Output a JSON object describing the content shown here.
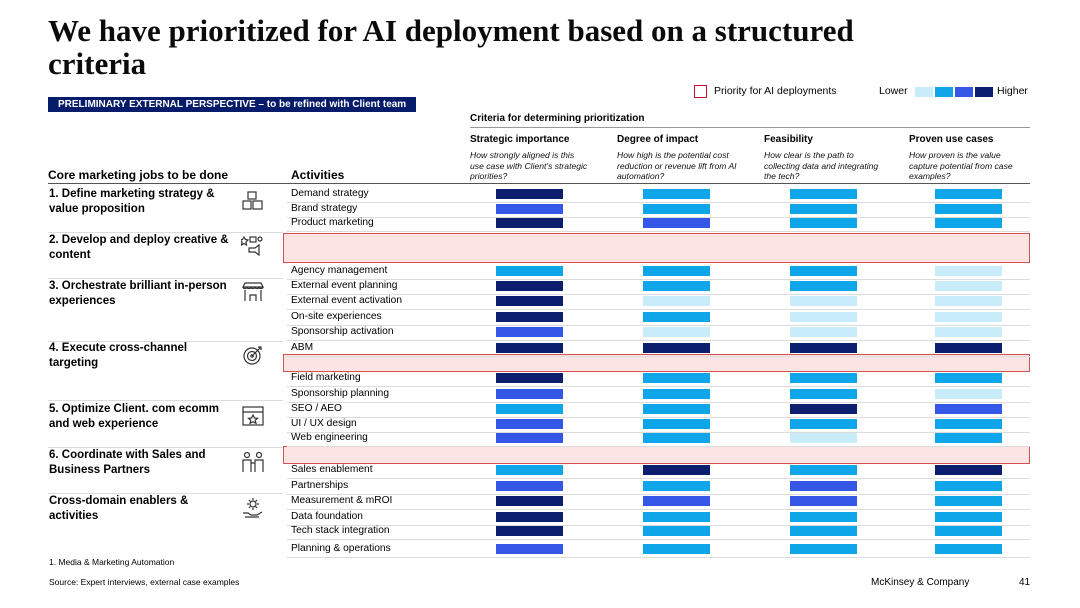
{
  "title": "We have prioritized for AI deployment based on a structured criteria",
  "banner": "PRELIMINARY EXTERNAL PERSPECTIVE – to be refined with Client team",
  "legend": {
    "priority_label": "Priority for AI deployments",
    "lower": "Lower",
    "higher": "Higher",
    "scale_colors": [
      "#c8ecfa",
      "#0ea5e9",
      "#3557e8",
      "#0b1f6e"
    ]
  },
  "criteria_group": "Criteria for determining prioritization",
  "criteria": [
    {
      "name": "Strategic importance",
      "desc": "How strongly aligned is this use case with Client's strategic priorities?"
    },
    {
      "name": "Degree of impact",
      "desc": "How high is the potential cost reduction or revenue lift from AI automation?"
    },
    {
      "name": "Feasibility",
      "desc": "How clear is the path to collecting data and integrating the tech?"
    },
    {
      "name": "Proven use cases",
      "desc": "How proven is the value capture potential from case examples?"
    }
  ],
  "col_jobs": "Core marketing jobs to be done",
  "col_activities": "Activities",
  "jobs": [
    {
      "label": "1. Define marketing strategy & value proposition",
      "icon": "blocks-icon"
    },
    {
      "label": "2. Develop and deploy creative & content",
      "icon": "creative-icon"
    },
    {
      "label": "3. Orchestrate brilliant in-person experiences",
      "icon": "storefront-icon"
    },
    {
      "label": "4. Execute cross-channel targeting",
      "icon": "target-icon"
    },
    {
      "label": "5. Optimize Client. com ecomm and web experience",
      "icon": "browser-icon"
    },
    {
      "label": "6. Coordinate with Sales and Business Partners",
      "icon": "people-icon"
    },
    {
      "label": "Cross-domain enablers & activities",
      "icon": "gear-hand-icon"
    }
  ],
  "activities": [
    {
      "name": "Demand strategy",
      "levels": [
        4,
        2,
        2,
        2
      ]
    },
    {
      "name": "Brand strategy",
      "levels": [
        3,
        2,
        2,
        2
      ]
    },
    {
      "name": "Product marketing",
      "levels": [
        4,
        3,
        2,
        2
      ]
    },
    {
      "name": "Agency management",
      "levels": [
        2,
        2,
        2,
        1
      ]
    },
    {
      "name": "External event planning",
      "levels": [
        4,
        2,
        2,
        1
      ]
    },
    {
      "name": "External event activation",
      "levels": [
        4,
        1,
        1,
        1
      ]
    },
    {
      "name": "On-site experiences",
      "levels": [
        4,
        2,
        1,
        1
      ]
    },
    {
      "name": "Sponsorship activation",
      "levels": [
        3,
        1,
        1,
        1
      ]
    },
    {
      "name": "ABM",
      "levels": [
        4,
        4,
        4,
        4
      ]
    },
    {
      "name": "Field marketing",
      "levels": [
        4,
        2,
        2,
        2
      ]
    },
    {
      "name": "Sponsorship planning",
      "levels": [
        3,
        2,
        2,
        1
      ]
    },
    {
      "name": "SEO / AEO",
      "levels": [
        2,
        2,
        4,
        3
      ]
    },
    {
      "name": "UI / UX design",
      "levels": [
        3,
        2,
        2,
        2
      ]
    },
    {
      "name": "Web engineering",
      "levels": [
        3,
        2,
        1,
        2
      ]
    },
    {
      "name": "Sales enablement",
      "levels": [
        2,
        4,
        2,
        4
      ]
    },
    {
      "name": "Partnerships",
      "levels": [
        3,
        2,
        3,
        2
      ]
    },
    {
      "name": "Measurement & mROI",
      "levels": [
        4,
        3,
        3,
        2
      ]
    },
    {
      "name": "Data foundation",
      "levels": [
        4,
        2,
        2,
        2
      ]
    },
    {
      "name": "Tech stack integration",
      "levels": [
        4,
        2,
        2,
        2
      ]
    },
    {
      "name": "Planning & operations",
      "levels": [
        3,
        2,
        2,
        2
      ]
    }
  ],
  "footnote": "1.    Media & Marketing Automation",
  "source": "Source: Expert interviews, external case examples",
  "brand": "McKinsey & Company",
  "page_number": "41"
}
